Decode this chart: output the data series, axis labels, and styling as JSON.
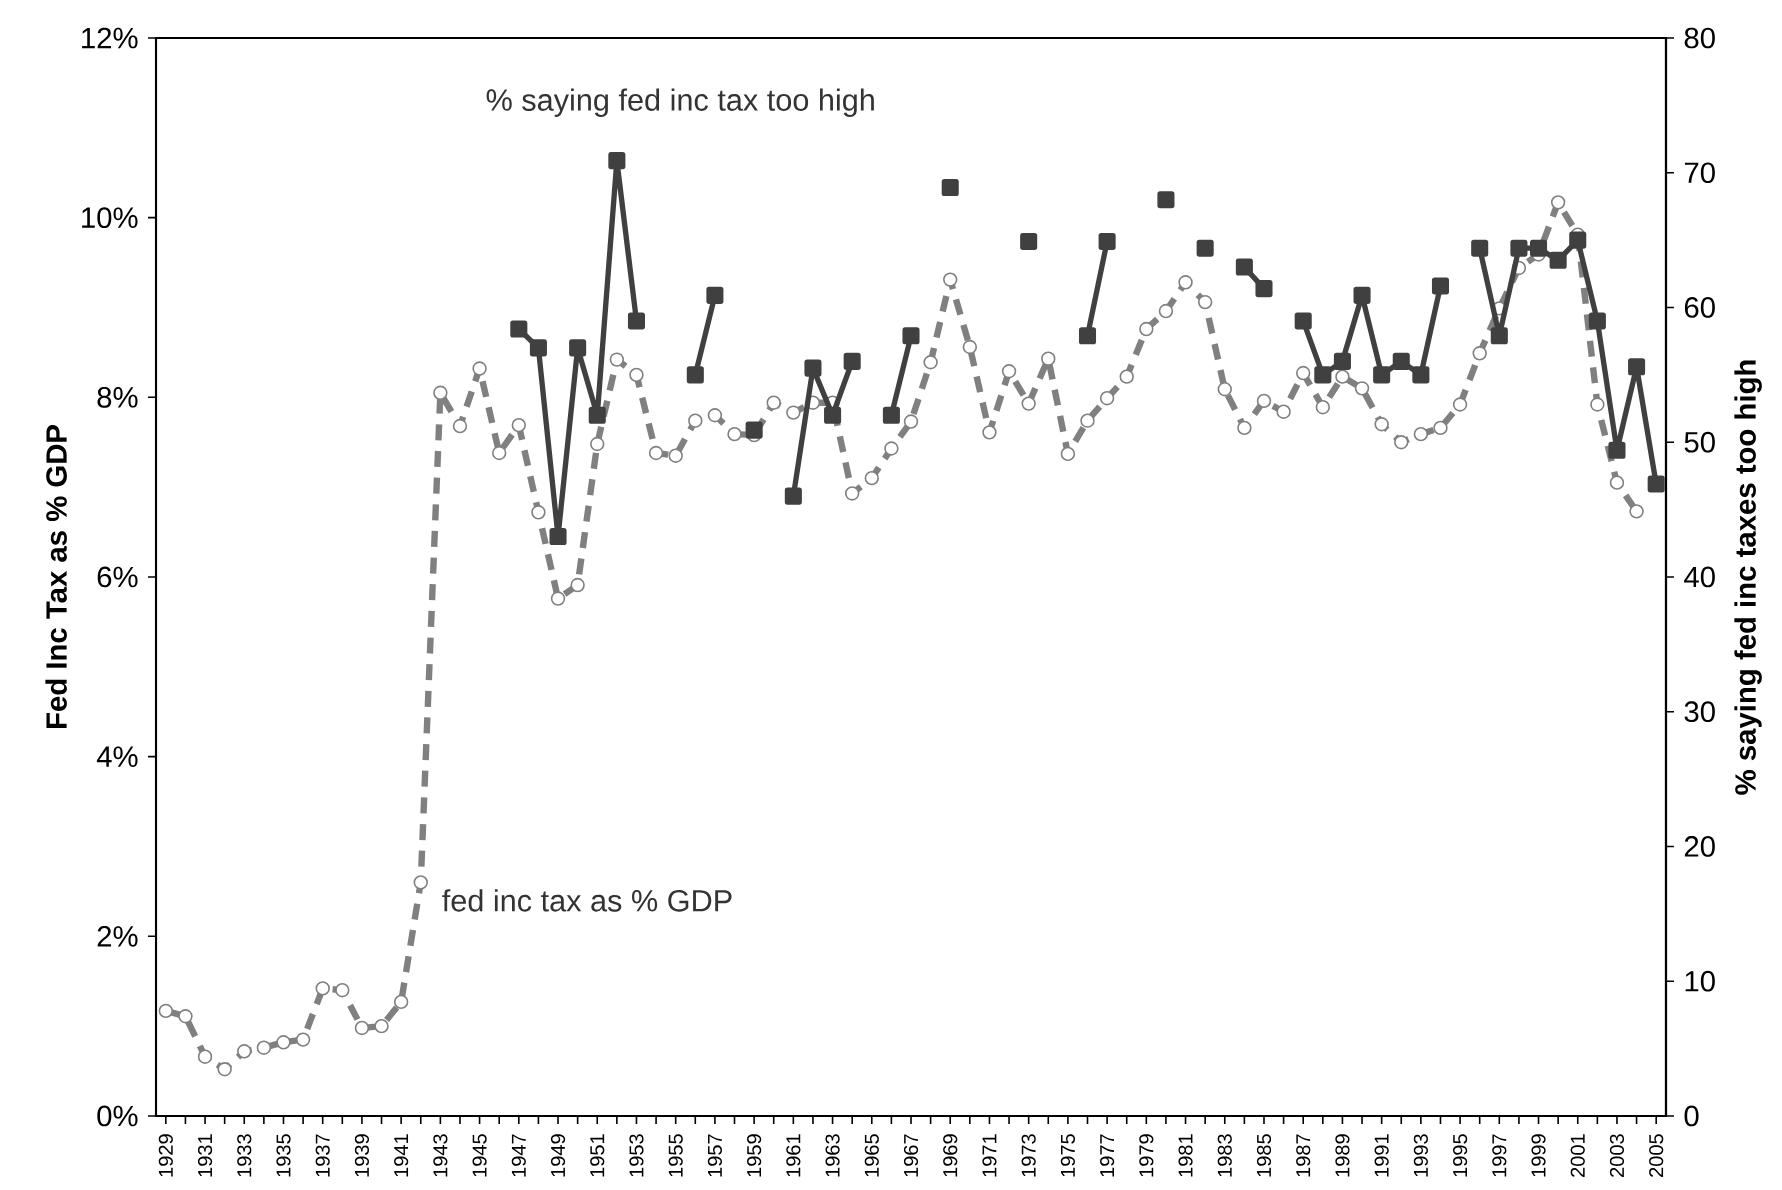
{
  "chart_data": {
    "type": "line",
    "ylabel": "Fed Inc Tax as % GDP",
    "y2label": "% saying fed inc taxes too high",
    "annotations": [
      "% saying fed inc tax too high",
      "fed inc tax as % GDP"
    ],
    "x": [
      1929,
      1930,
      1931,
      1932,
      1933,
      1934,
      1935,
      1936,
      1937,
      1938,
      1939,
      1940,
      1941,
      1942,
      1943,
      1944,
      1945,
      1946,
      1947,
      1948,
      1949,
      1950,
      1951,
      1952,
      1953,
      1954,
      1955,
      1956,
      1957,
      1958,
      1959,
      1960,
      1961,
      1962,
      1963,
      1964,
      1965,
      1966,
      1967,
      1968,
      1969,
      1970,
      1971,
      1972,
      1973,
      1974,
      1975,
      1976,
      1977,
      1978,
      1979,
      1980,
      1981,
      1982,
      1983,
      1984,
      1985,
      1986,
      1987,
      1988,
      1989,
      1990,
      1991,
      1992,
      1993,
      1994,
      1995,
      1996,
      1997,
      1998,
      1999,
      2000,
      2001,
      2002,
      2003,
      2004,
      2005
    ],
    "series": [
      {
        "color": "#808080",
        "marker": "circle",
        "line_style": "dashed",
        "values": [
          1.17,
          1.11,
          0.66,
          0.52,
          0.72,
          0.76,
          0.82,
          0.85,
          1.42,
          1.4,
          0.98,
          1.0,
          1.27,
          2.6,
          8.05,
          7.68,
          8.32,
          7.38,
          7.69,
          6.72,
          5.76,
          5.91,
          7.48,
          8.42,
          8.25,
          7.38,
          7.35,
          7.74,
          7.8,
          7.59,
          7.58,
          7.94,
          7.83,
          7.94,
          7.94,
          6.93,
          7.1,
          7.43,
          7.73,
          8.39,
          9.31,
          8.56,
          7.61,
          8.29,
          7.93,
          8.43,
          7.37,
          7.74,
          7.99,
          8.23,
          8.76,
          8.96,
          9.28,
          9.06,
          8.09,
          7.66,
          7.96,
          7.84,
          8.27,
          7.89,
          8.23,
          8.1,
          7.7,
          7.5,
          7.59,
          7.66,
          7.92,
          8.49,
          8.99,
          9.44,
          9.59,
          10.17,
          9.81,
          7.92,
          7.05,
          6.73,
          null
        ]
      },
      {
        "color": "#404040",
        "marker": "square",
        "line_style": "solid",
        "axis": "y2",
        "values": [
          null,
          null,
          null,
          null,
          null,
          null,
          null,
          null,
          null,
          null,
          null,
          null,
          null,
          null,
          null,
          null,
          null,
          null,
          58.4,
          57.0,
          43.0,
          57.0,
          52.0,
          70.9,
          59.0,
          null,
          null,
          55.0,
          60.9,
          null,
          50.9,
          null,
          46.0,
          55.5,
          52.0,
          56.0,
          null,
          52.0,
          57.9,
          null,
          68.9,
          null,
          null,
          null,
          64.9,
          null,
          null,
          57.9,
          64.9,
          null,
          null,
          68.0,
          null,
          64.4,
          null,
          63.0,
          61.4,
          null,
          59.0,
          55.0,
          56.0,
          60.9,
          55.0,
          56.0,
          55.0,
          61.6,
          null,
          64.4,
          57.9,
          64.4,
          64.4,
          63.5,
          65.0,
          59.0,
          49.4,
          55.6,
          46.9
        ]
      }
    ],
    "xlim": [
      1928.5,
      2005.5
    ],
    "xticks": [
      1929,
      {
        "value": 1930,
        "label": null
      },
      1931,
      {
        "value": 1932,
        "label": null
      },
      1933,
      {
        "value": 1934,
        "label": null
      },
      1935,
      {
        "value": 1936,
        "label": null
      },
      1937,
      {
        "value": 1938,
        "label": null
      },
      1939,
      {
        "value": 1940,
        "label": null
      },
      1941,
      {
        "value": 1942,
        "label": null
      },
      1943,
      {
        "value": 1944,
        "label": null
      },
      1945,
      {
        "value": 1946,
        "label": null
      },
      1947,
      {
        "value": 1948,
        "label": null
      },
      1949,
      {
        "value": 1950,
        "label": null
      },
      1951,
      {
        "value": 1952,
        "label": null
      },
      1953,
      {
        "value": 1954,
        "label": null
      },
      1955,
      {
        "value": 1956,
        "label": null
      },
      1957,
      {
        "value": 1958,
        "label": null
      },
      1959,
      {
        "value": 1960,
        "label": null
      },
      1961,
      {
        "value": 1962,
        "label": null
      },
      1963,
      {
        "value": 1964,
        "label": null
      },
      1965,
      {
        "value": 1966,
        "label": null
      },
      1967,
      {
        "value": 1968,
        "label": null
      },
      1969,
      {
        "value": 1970,
        "label": null
      },
      1971,
      {
        "value": 1972,
        "label": null
      },
      1973,
      {
        "value": 1974,
        "label": null
      },
      1975,
      {
        "value": 1976,
        "label": null
      },
      1977,
      {
        "value": 1978,
        "label": null
      },
      1979,
      {
        "value": 1980,
        "label": null
      },
      1981,
      {
        "value": 1982,
        "label": null
      },
      1983,
      {
        "value": 1984,
        "label": null
      },
      1985,
      {
        "value": 1986,
        "label": null
      },
      1987,
      {
        "value": 1988,
        "label": null
      },
      1989,
      {
        "value": 1990,
        "label": null
      },
      1991,
      {
        "value": 1992,
        "label": null
      },
      1993,
      {
        "value": 1994,
        "label": null
      },
      1995,
      {
        "value": 1996,
        "label": null
      },
      1997,
      {
        "value": 1998,
        "label": null
      },
      1999,
      {
        "value": 2000,
        "label": null
      },
      2001,
      {
        "value": 2002,
        "label": null
      },
      2003,
      {
        "value": 2004,
        "label": null
      },
      2005
    ],
    "ylim": [
      0,
      12
    ],
    "yticks": [
      {
        "value": 0,
        "label": "0%"
      },
      {
        "value": 2,
        "label": "2%"
      },
      {
        "value": 4,
        "label": "4%"
      },
      {
        "value": 6,
        "label": "6%"
      },
      {
        "value": 8,
        "label": "8%"
      },
      {
        "value": 10,
        "label": "10%"
      },
      {
        "value": 12,
        "label": "12%"
      }
    ],
    "y2lim": [
      0,
      80
    ],
    "y2ticks": [
      0,
      10,
      20,
      30,
      40,
      50,
      60,
      70,
      80
    ]
  }
}
